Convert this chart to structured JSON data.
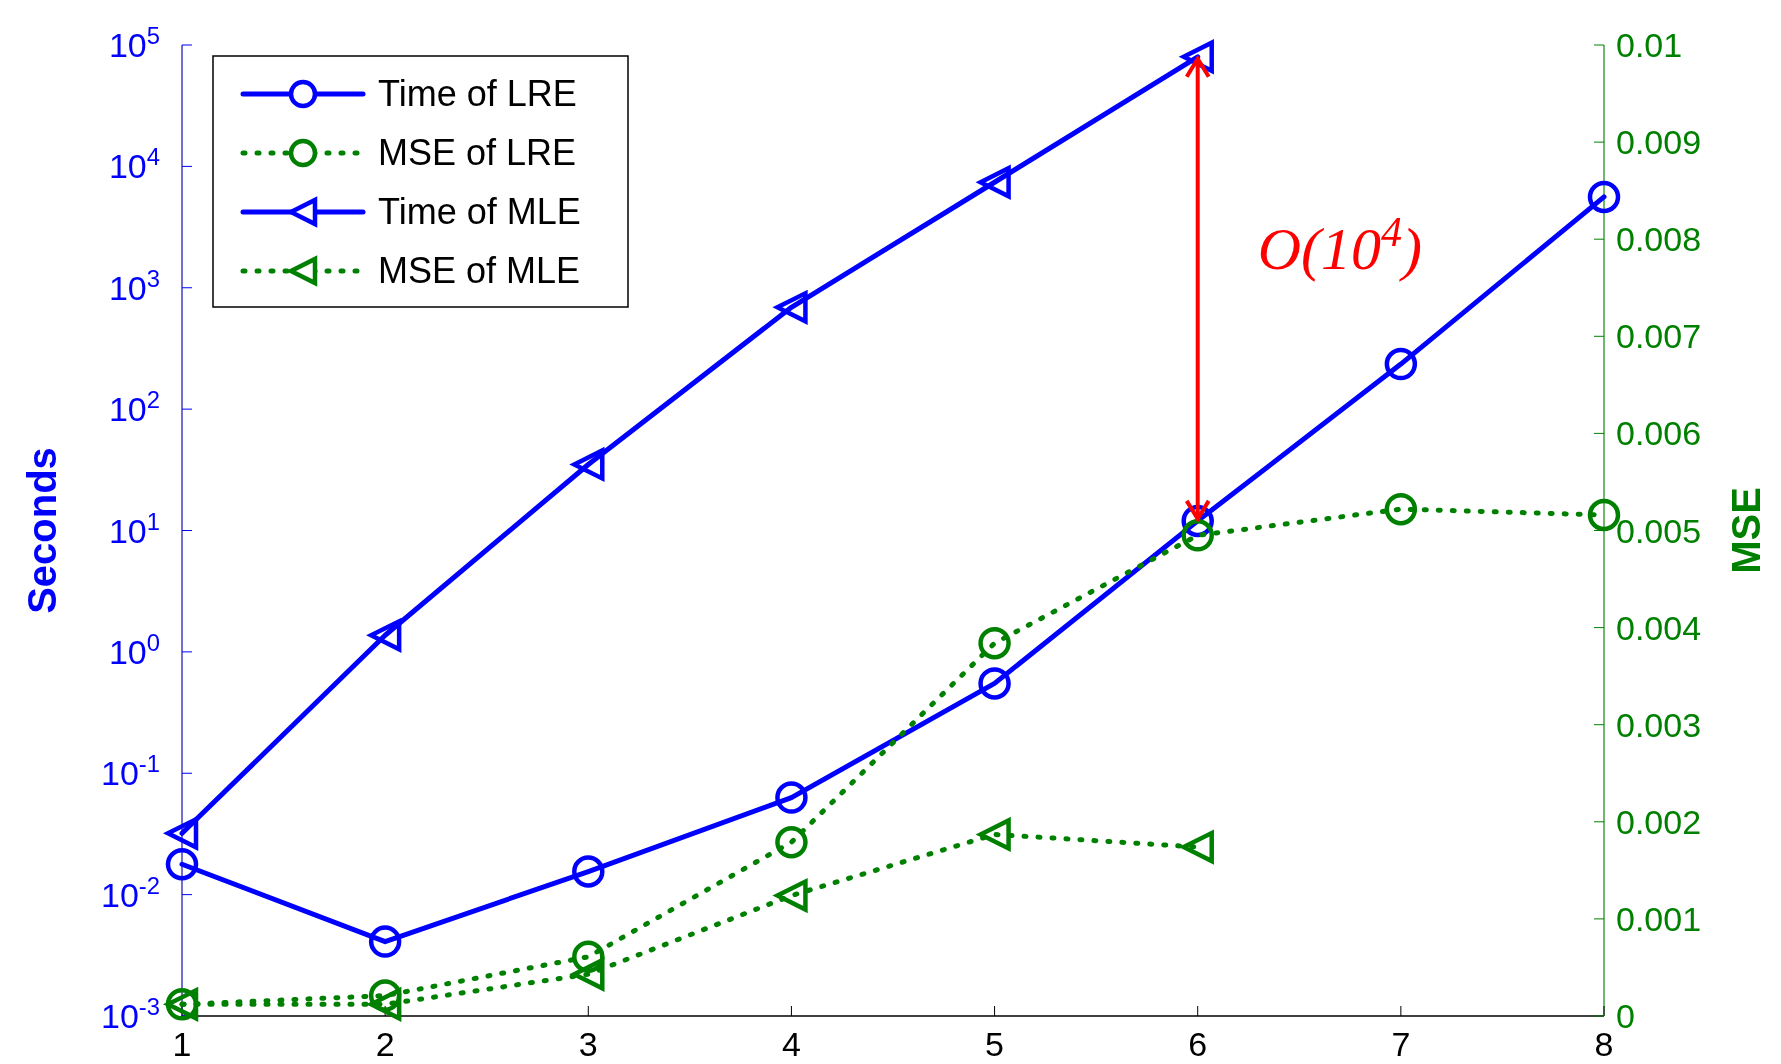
{
  "chart_data": {
    "type": "line",
    "x": [
      1,
      2,
      3,
      4,
      5,
      6,
      7,
      8
    ],
    "ylabel": "Seconds",
    "y2label": "MSE",
    "log": "y",
    "xlim": [
      1,
      8
    ],
    "xticks": [
      1,
      2,
      3,
      4,
      5,
      6,
      7,
      8
    ],
    "ylim": [
      0.001,
      100000
    ],
    "yticks": [
      {
        "value": 0.001,
        "label": "10$^{-3}$"
      },
      {
        "value": 0.01,
        "label": "10$^{-2}$"
      },
      {
        "value": 0.1,
        "label": "10$^{-1}$"
      },
      {
        "value": 1,
        "label": "10$^{0}$"
      },
      {
        "value": 10,
        "label": "10$^{1}$"
      },
      {
        "value": 100,
        "label": "10$^{2}$"
      },
      {
        "value": 1000,
        "label": "10$^{3}$"
      },
      {
        "value": 10000,
        "label": "10$^{4}$"
      },
      {
        "value": 100000,
        "label": "10$^{5}$"
      }
    ],
    "y2lim": [
      0,
      0.01
    ],
    "y2ticks": [
      0,
      0.001,
      0.002,
      0.003,
      0.004,
      0.005,
      0.006,
      0.007,
      0.008,
      0.009,
      0.01
    ],
    "legend": "top left",
    "grid": false,
    "annotations": [
      "O(10$^{4}$)"
    ],
    "series": [
      {
        "name": "Time of LRE",
        "color": "#0000ff",
        "marker": "circle",
        "line_style": "solid",
        "values": [
          0.0178,
          0.0041,
          0.0155,
          0.063,
          0.55,
          12,
          235,
          5600
        ]
      },
      {
        "name": "MSE of LRE",
        "color": "#008000",
        "marker": "circle",
        "line_style": "dotted",
        "axis": "y2",
        "values": [
          0.00012,
          0.00021,
          0.00061,
          0.00179,
          0.00384,
          0.00495,
          0.00522,
          0.00516
        ]
      },
      {
        "name": "Time of MLE",
        "color": "#0000ff",
        "marker": "triangle",
        "line_style": "solid",
        "values": [
          0.032,
          1.37,
          35,
          690,
          7400,
          80000,
          null,
          null
        ]
      },
      {
        "name": "MSE of MLE",
        "color": "#008000",
        "marker": "triangle",
        "line_style": "dotted",
        "axis": "y2",
        "values": [
          0.00012,
          0.00012,
          0.00043,
          0.00124,
          0.00187,
          0.00174,
          null,
          null
        ]
      }
    ]
  }
}
